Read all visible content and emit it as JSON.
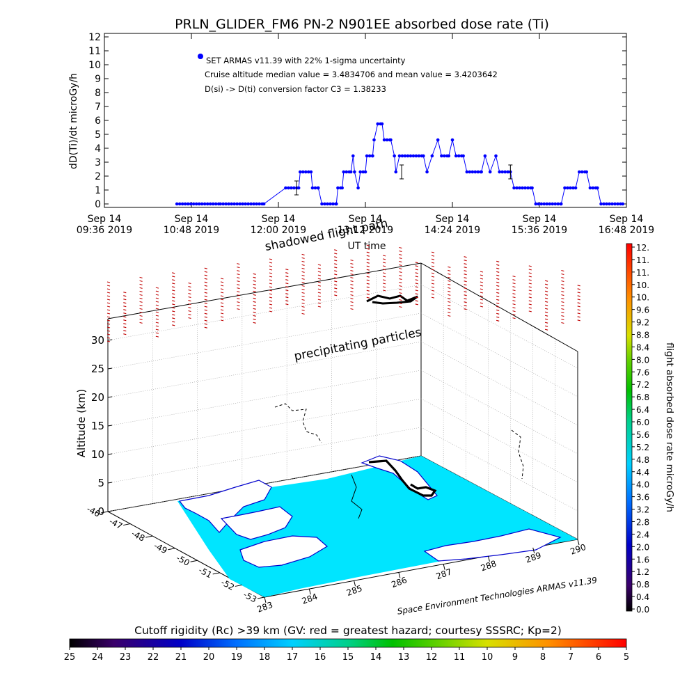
{
  "top_title": "PRLN_GLIDER_FM6 PN-2 N901EE absorbed dose rate (Ti)",
  "top_ylabel": "dD(Ti)/dt microGy/h",
  "top_xlabel": "UT time",
  "legend": {
    "line1": "SET ARMAS v11.39 with 22% 1-sigma uncertainty",
    "line2": "Cruise altitude median value = 3.4834706 and mean value = 3.4203642",
    "line3": "D(si) -> D(ti) conversion factor C3 = 1.38233"
  },
  "time_ticks": [
    {
      "date": "Sep 14",
      "time": "09:36 2019"
    },
    {
      "date": "Sep 14",
      "time": "10:48 2019"
    },
    {
      "date": "Sep 14",
      "time": "12:00 2019"
    },
    {
      "date": "Sep 14",
      "time": "13:12 2019"
    },
    {
      "date": "Sep 14",
      "time": "14:24 2019"
    },
    {
      "date": "Sep 14",
      "time": "15:36 2019"
    },
    {
      "date": "Sep 14",
      "time": "16:48 2019"
    }
  ],
  "y_ticks": [
    "0",
    "1",
    "2",
    "3",
    "4",
    "5",
    "6",
    "7",
    "8",
    "9",
    "10",
    "11",
    "12"
  ],
  "chart_data": [
    {
      "type": "scatter",
      "title": "PRLN_GLIDER_FM6 PN-2 N901EE absorbed dose rate (Ti)",
      "xlabel": "UT time",
      "ylabel": "dD(Ti)/dt microGy/h",
      "xlim_hours": [
        9.6,
        16.8
      ],
      "ylim": [
        0,
        12
      ],
      "series": [
        {
          "name": "SET ARMAS v11.39 with 22% 1-sigma uncertainty",
          "color": "#0000ff",
          "points": [
            [
              10.6,
              0
            ],
            [
              11.2,
              0
            ],
            [
              11.8,
              0
            ],
            [
              12.1,
              1.15
            ],
            [
              12.28,
              1.15
            ],
            [
              12.3,
              2.3
            ],
            [
              12.45,
              2.3
            ],
            [
              12.47,
              1.15
            ],
            [
              12.55,
              1.15
            ],
            [
              12.6,
              0
            ],
            [
              12.8,
              0
            ],
            [
              12.82,
              1.15
            ],
            [
              12.88,
              1.15
            ],
            [
              12.9,
              2.3
            ],
            [
              13.0,
              2.3
            ],
            [
              13.03,
              3.45
            ],
            [
              13.05,
              2.3
            ],
            [
              13.1,
              1.15
            ],
            [
              13.13,
              2.3
            ],
            [
              13.2,
              2.3
            ],
            [
              13.22,
              3.45
            ],
            [
              13.3,
              3.45
            ],
            [
              13.32,
              4.6
            ],
            [
              13.37,
              5.75
            ],
            [
              13.43,
              5.75
            ],
            [
              13.46,
              4.6
            ],
            [
              13.55,
              4.6
            ],
            [
              13.6,
              3.45
            ],
            [
              13.62,
              2.3
            ],
            [
              13.67,
              3.45
            ],
            [
              13.9,
              3.45
            ],
            [
              14.0,
              3.45
            ],
            [
              14.05,
              2.3
            ],
            [
              14.12,
              3.45
            ],
            [
              14.2,
              4.6
            ],
            [
              14.25,
              3.45
            ],
            [
              14.35,
              3.45
            ],
            [
              14.4,
              4.6
            ],
            [
              14.45,
              3.45
            ],
            [
              14.55,
              3.45
            ],
            [
              14.6,
              2.3
            ],
            [
              14.8,
              2.3
            ],
            [
              14.85,
              3.45
            ],
            [
              14.92,
              2.3
            ],
            [
              15.0,
              3.45
            ],
            [
              15.05,
              2.3
            ],
            [
              15.2,
              2.3
            ],
            [
              15.25,
              1.15
            ],
            [
              15.5,
              1.15
            ],
            [
              15.55,
              0
            ],
            [
              15.9,
              0
            ],
            [
              15.95,
              1.15
            ],
            [
              16.1,
              1.15
            ],
            [
              16.15,
              2.3
            ],
            [
              16.25,
              2.3
            ],
            [
              16.3,
              1.15
            ],
            [
              16.4,
              1.15
            ],
            [
              16.45,
              0
            ],
            [
              16.75,
              0
            ]
          ]
        }
      ]
    },
    {
      "type": "3d-map",
      "xlabel": "",
      "ylabel": "",
      "zlabel": "Altitude (km)",
      "z_ticks": [
        "0",
        "5",
        "10",
        "15",
        "20",
        "25",
        "30"
      ],
      "lat_ticks": [
        "-46",
        "-47",
        "-48",
        "-49",
        "-50",
        "-51",
        "-52",
        "-53"
      ],
      "lon_ticks": [
        "283",
        "284",
        "285",
        "286",
        "287",
        "288",
        "289",
        "290"
      ],
      "annotations": [
        "shadowed flight path",
        "precipitating particles"
      ],
      "credit": "Space Environment Technologies ARMAS v11.39"
    }
  ],
  "right_colorbar": {
    "label": "flight absorbed dose rate microGy/h",
    "ticks": [
      "12.",
      "11.",
      "11.",
      "10.",
      "10.",
      "9.6",
      "9.2",
      "8.8",
      "8.4",
      "8.0",
      "7.6",
      "7.2",
      "6.8",
      "6.4",
      "6.0",
      "5.6",
      "5.2",
      "4.8",
      "4.4",
      "4.0",
      "3.6",
      "3.2",
      "2.8",
      "2.4",
      "2.0",
      "1.6",
      "1.2",
      "0.8",
      "0.4",
      "0.0"
    ]
  },
  "bottom_colorbar": {
    "label": "Cutoff rigidity (Rc) >39 km (GV: red = greatest hazard; courtesy SSSRC; Kp=2)",
    "ticks": [
      "25",
      "24",
      "23",
      "22",
      "21",
      "20",
      "19",
      "18",
      "17",
      "16",
      "15",
      "14",
      "13",
      "12",
      "11",
      "10",
      "9",
      "8",
      "7",
      "6",
      "5"
    ]
  },
  "colors": {
    "plot_blue": "#0000ff",
    "map_cyan": "#00e5ff",
    "coast_blue": "#0000cc",
    "particle_red": "#c00000",
    "grid": "#888888"
  }
}
